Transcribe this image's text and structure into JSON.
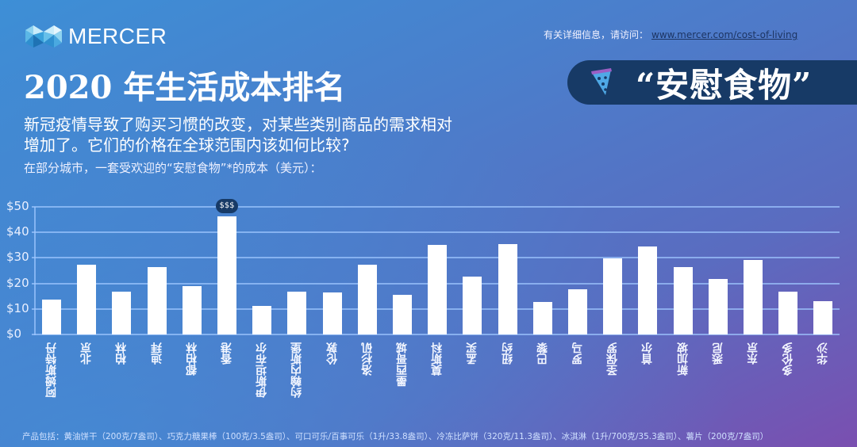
{
  "header": {
    "logo_text": "MERCER",
    "more_info_label": "有关详细信息，请访问：",
    "more_info_link": "www.mercer.com/cost-of-living",
    "title": "2020 年生活成本排名",
    "pill_title": "“安慰食物”",
    "pill_icon": "pizza-icon",
    "subtitle": "新冠疫情导致了购买习惯的改变，对某些类别商品的需求相对增加了。它们的价格在全球范围内该如何比较?",
    "chart_caption": "在部分城市，一套受欢迎的“安慰食物”*的成本（美元）："
  },
  "colors": {
    "background_start": "#3d8fd6",
    "background_end": "#7a4fb0",
    "pill_bg": "#173a66",
    "bar": "#ffffff",
    "gridline": "#a0c8ff",
    "badge_bg": "#173a66"
  },
  "chart_data": {
    "type": "bar",
    "title": "在部分城市，一套受欢迎的“安慰食物”*的成本（美元）",
    "xlabel": "",
    "ylabel": "美元",
    "ylim": [
      0,
      50
    ],
    "yticks": [
      "$0",
      "$10",
      "$20",
      "$30",
      "$40",
      "$50"
    ],
    "grid": true,
    "legend": null,
    "categories": [
      "阿姆斯特丹",
      "北京",
      "柏林",
      "迪拜",
      "都柏林",
      "香港",
      "伊斯坦布尔",
      "约翰内斯堡",
      "伦敦",
      "洛杉矶",
      "墨西哥城",
      "莫斯科",
      "孟买",
      "纽约",
      "巴黎",
      "罗马",
      "圣保罗",
      "首尔",
      "新加坡",
      "悉尼",
      "东京",
      "多伦多",
      "华沙"
    ],
    "values": [
      13.7,
      27.3,
      16.8,
      26.4,
      19.0,
      46.3,
      11.2,
      16.8,
      16.5,
      27.3,
      15.5,
      35.1,
      22.7,
      35.4,
      12.7,
      17.7,
      29.8,
      34.5,
      26.4,
      21.7,
      29.2,
      16.8,
      13.0
    ],
    "annotations": [
      {
        "category": "香港",
        "text": "$$$"
      }
    ]
  },
  "footnote": "产品包括：黄油饼干（200克/7盎司）、巧克力糖果棒（100克/3.5盎司）、可口可乐/百事可乐（1升/33.8盎司）、冷冻比萨饼（320克/11.3盎司）、冰淇淋（1升/700克/35.3盎司）、薯片（200克/7盎司）"
}
